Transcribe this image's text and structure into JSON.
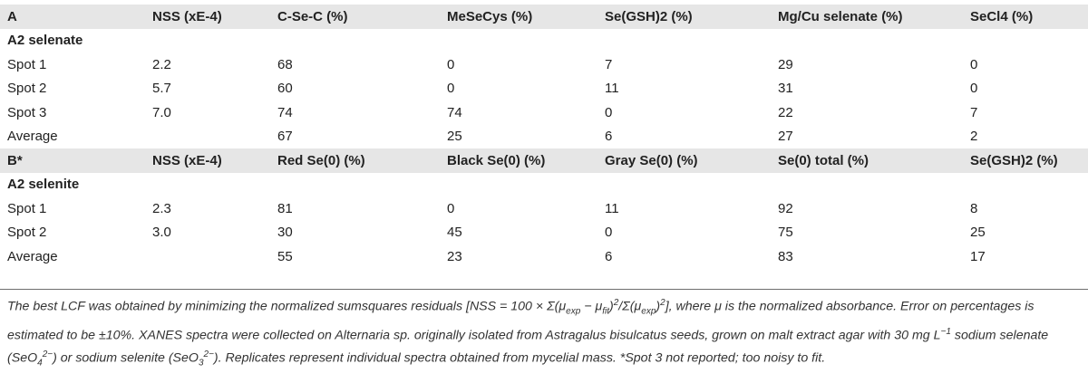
{
  "sections": [
    {
      "headers": [
        "A",
        "NSS (xE-4)",
        "C-Se-C (%)",
        "MeSeCys (%)",
        "Se(GSH)2 (%)",
        "Mg/Cu selenate (%)",
        "SeCl4 (%)"
      ],
      "group": "A2 selenate",
      "rows": [
        [
          "Spot 1",
          "2.2",
          "68",
          "0",
          "7",
          "29",
          "0"
        ],
        [
          "Spot 2",
          "5.7",
          "60",
          "0",
          "11",
          "31",
          "0"
        ],
        [
          "Spot 3",
          "7.0",
          "74",
          "74",
          "0",
          "22",
          "7"
        ],
        [
          "Average",
          "",
          "67",
          "25",
          "6",
          "27",
          "2"
        ]
      ]
    },
    {
      "headers": [
        "B*",
        "NSS (xE-4)",
        "Red Se(0) (%)",
        "Black Se(0) (%)",
        "Gray Se(0) (%)",
        "Se(0) total (%)",
        "Se(GSH)2 (%)"
      ],
      "group": "A2 selenite",
      "rows": [
        [
          "Spot 1",
          "2.3",
          "81",
          "0",
          "11",
          "92",
          "8"
        ],
        [
          "Spot 2",
          "3.0",
          "30",
          "45",
          "0",
          "75",
          "25"
        ],
        [
          "Average",
          "",
          "55",
          "23",
          "6",
          "83",
          "17"
        ]
      ]
    }
  ],
  "footnote": {
    "p1": "The best LCF was obtained by minimizing the normalized sumsquares residuals [NSS = 100 × Σ(",
    "mu": "μ",
    "exp": "exp",
    "minus": " − ",
    "fit": "fit",
    "sq": "2",
    "slash": "/Σ(",
    "p2": ")",
    "p3": "], where μ is the normalized absorbance. Error on percentages is estimated to be ±10%. XANES spectra were collected on Alternaria sp. originally isolated from Astragalus bisulcatus seeds, grown on malt extract agar with 30 mg L",
    "neg1": "−1",
    "p4": " sodium selenate (SeO",
    "four": "4",
    "charge": "2−",
    "p5": ") or sodium selenite (SeO",
    "three": "3",
    "p6": "). Replicates represent individual spectra obtained from mycelial mass. *Spot 3 not reported; too noisy to fit."
  }
}
